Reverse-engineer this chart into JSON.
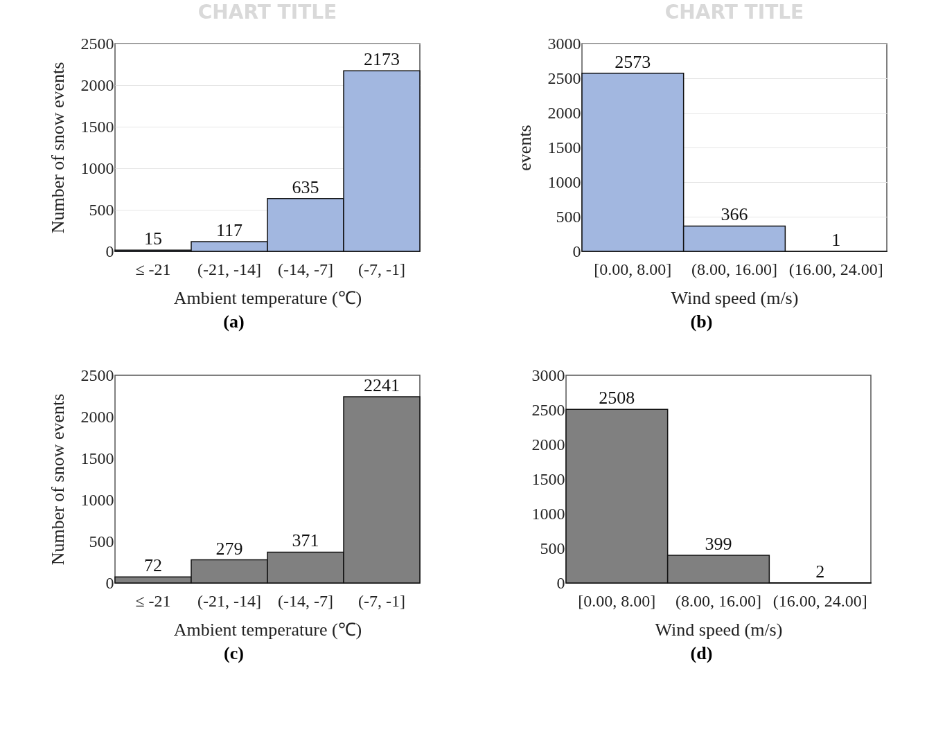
{
  "chart_data": [
    {
      "type": "bar",
      "title": "CHART TITLE",
      "xlabel": "Ambient temperature (℃)",
      "ylabel": "Number of snow events",
      "categories": [
        "≤ -21",
        "(-21, -14]",
        "(-14, -7]",
        "(-7, -1]"
      ],
      "values": [
        15,
        117,
        635,
        2173
      ],
      "color": "#a2b7e0",
      "ylim": [
        0,
        2500
      ],
      "yticks": [
        0,
        500,
        1000,
        1500,
        2000,
        2500
      ],
      "grid": "y",
      "data_labels": true,
      "annotations": [
        "(a)"
      ]
    },
    {
      "type": "bar",
      "title": "CHART TITLE",
      "xlabel": "Wind speed (m/s)",
      "ylabel": "events",
      "categories": [
        "[0.00, 8.00]",
        "(8.00, 16.00]",
        "(16.00, 24.00]"
      ],
      "values": [
        2573,
        366,
        1
      ],
      "color": "#a2b7e0",
      "ylim": [
        0,
        3000
      ],
      "yticks": [
        0,
        500,
        1000,
        1500,
        2000,
        2500,
        3000
      ],
      "grid": "y",
      "data_labels": true,
      "annotations": [
        "(b)"
      ]
    },
    {
      "type": "bar",
      "xlabel": "Ambient temperature (℃)",
      "ylabel": "Number of snow events",
      "categories": [
        "≤ -21",
        "(-21, -14]",
        "(-14, -7]",
        "(-7, -1]"
      ],
      "values": [
        72,
        279,
        371,
        2241
      ],
      "color": "#808080",
      "ylim": [
        0,
        2500
      ],
      "yticks": [
        0,
        500,
        1000,
        1500,
        2000,
        2500
      ],
      "data_labels": true,
      "annotations": [
        "(c)"
      ]
    },
    {
      "type": "bar",
      "xlabel": "Wind speed (m/s)",
      "categories": [
        "[0.00, 8.00]",
        "(8.00, 16.00]",
        "(16.00, 24.00]"
      ],
      "values": [
        2508,
        399,
        2
      ],
      "color": "#808080",
      "ylim": [
        0,
        3000
      ],
      "yticks": [
        0,
        500,
        1000,
        1500,
        2000,
        2500,
        3000
      ],
      "data_labels": true,
      "annotations": [
        "(d)"
      ]
    }
  ]
}
